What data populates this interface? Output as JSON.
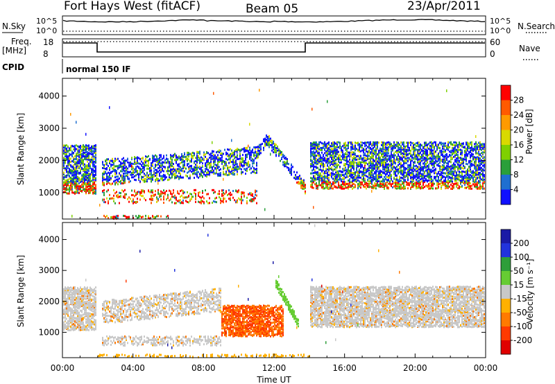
{
  "header": {
    "station": "Fort Hays West (fitACF)",
    "beam": "Beam 05",
    "date": "23/Apr/2011"
  },
  "status_panels": {
    "nsky_label": "N.Sky",
    "nsky_ticks": [
      "10^5",
      "10^0"
    ],
    "nsearch_label": "N.Search",
    "nsearch_ticks": [
      "10^5",
      "10^0"
    ],
    "freq_label": "Freq.",
    "freq_unit": "[MHz]",
    "freq_ticks": [
      "18",
      "8"
    ],
    "nave_label": "Nave",
    "nave_ticks": [
      "60",
      "0"
    ],
    "cpid_label": "CPID",
    "cpid_value": "normal 150 IF"
  },
  "power_panel": {
    "ylabel": "Slant Range [km]",
    "colorbar_label": "Power [dB]",
    "colorbar_ticks": [
      "28",
      "24",
      "20",
      "16",
      "12",
      "8",
      "4"
    ],
    "colorbar_colors": [
      "#ff0000",
      "#ff5a00",
      "#ff9a00",
      "#d9d900",
      "#7fd000",
      "#2a9f3a",
      "#1f6fd0",
      "#1010ff"
    ]
  },
  "velocity_panel": {
    "ylabel": "Slant Range [km]",
    "colorbar_label": "Velocity [m s⁻¹]",
    "colorbar_ticks": [
      "200",
      "100",
      "50",
      "15",
      "-15",
      "-50",
      "-100",
      "-200"
    ],
    "colorbar_colors": [
      "#1a1aa6",
      "#2233dd",
      "#2e9e3a",
      "#66cc33",
      "#c8c8c8",
      "#ffb000",
      "#ff7a00",
      "#ff3a00",
      "#e00000"
    ]
  },
  "xaxis": {
    "label": "Time UT",
    "ticks": [
      "00:00",
      "04:00",
      "08:00",
      "12:00",
      "16:00",
      "20:00",
      "00:00"
    ]
  },
  "chart_data": [
    {
      "type": "heatmap",
      "name": "Power",
      "xlabel": "Time UT",
      "ylabel": "Slant Range [km]",
      "xlim": [
        0,
        24
      ],
      "ylim": [
        180,
        4550
      ],
      "yticks": [
        1000,
        2000,
        3000,
        4000
      ],
      "colorbar": {
        "label": "Power [dB]",
        "ticks": [
          28,
          24,
          20,
          16,
          12,
          8,
          4
        ]
      },
      "features": [
        {
          "desc": "near-range band",
          "t": [
            0.0,
            1.9
          ],
          "range": [
            1000,
            2500
          ]
        },
        {
          "desc": "mid band",
          "t": [
            2.2,
            11.0
          ],
          "range": [
            1200,
            2700
          ]
        },
        {
          "desc": "arc",
          "t": [
            11.0,
            13.8
          ],
          "range": [
            1200,
            2900
          ]
        },
        {
          "desc": "evening band",
          "t": [
            14.0,
            24.0
          ],
          "range": [
            1100,
            2600
          ]
        }
      ]
    },
    {
      "type": "heatmap",
      "name": "Velocity",
      "xlabel": "Time UT",
      "ylabel": "Slant Range [km]",
      "xlim": [
        0,
        24
      ],
      "ylim": [
        180,
        4550
      ],
      "yticks": [
        1000,
        2000,
        3000,
        4000
      ],
      "colorbar": {
        "label": "Velocity [m s⁻¹]",
        "ticks": [
          200,
          100,
          50,
          15,
          -15,
          -50,
          -100,
          -200
        ]
      },
      "features": [
        {
          "desc": "ground-scatter grey band",
          "t": [
            0.0,
            24.0
          ],
          "range": [
            1200,
            2500
          ]
        },
        {
          "desc": "negative velocity patch",
          "t": [
            9.0,
            12.5
          ],
          "range": [
            900,
            1900
          ]
        },
        {
          "desc": "positive velocity arc",
          "t": [
            12.0,
            13.4
          ],
          "range": [
            1300,
            2800
          ]
        }
      ]
    }
  ]
}
